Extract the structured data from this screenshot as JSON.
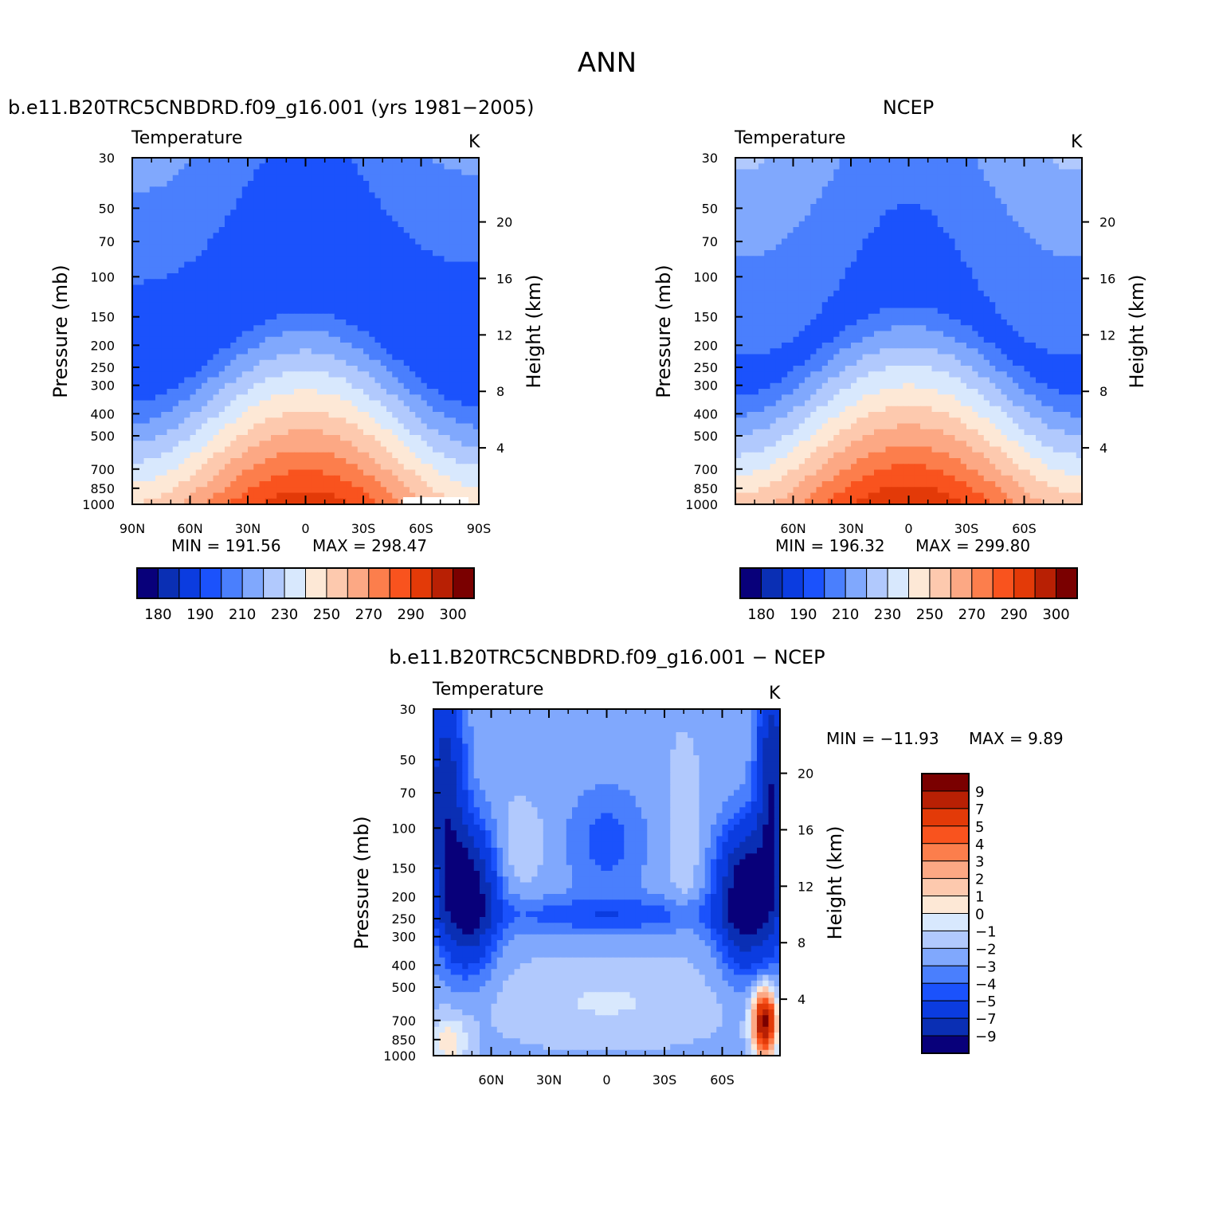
{
  "page_title": "ANN",
  "chart_data": [
    {
      "id": "model",
      "type": "contour",
      "title": "b.e11.B20TRC5CNBDRD.f09_g16.001 (yrs 1981-2005)",
      "variable": "Temperature",
      "units": "K",
      "ylabel": "Pressure (mb)",
      "y2label": "Height (km)",
      "pressure_ticks": [
        30,
        50,
        70,
        100,
        150,
        200,
        250,
        300,
        400,
        500,
        700,
        850,
        1000
      ],
      "height_ticks": [
        20,
        16,
        12,
        8,
        4
      ],
      "lat_ticks": [
        "90N",
        "60N",
        "30N",
        "0",
        "30S",
        "60S",
        "90S"
      ],
      "xlim": [
        90,
        -90
      ],
      "ylim": [
        1000,
        30
      ],
      "min_label": "MIN = 191.56",
      "max_label": "MAX = 298.47",
      "min": 191.56,
      "max": 298.47,
      "stats": {
        "min": 191.56,
        "max": 298.47
      },
      "levels": [
        175,
        180,
        190,
        200,
        210,
        220,
        230,
        240,
        250,
        260,
        270,
        280,
        290,
        300,
        305
      ],
      "colorbar_labels": [
        "180",
        "190",
        "210",
        "230",
        "250",
        "270",
        "290",
        "300"
      ],
      "colorbar_orientation": "horizontal"
    },
    {
      "id": "obs",
      "type": "contour",
      "title": "NCEP",
      "variable": "Temperature",
      "units": "K",
      "ylabel": "Pressure (mb)",
      "y2label": "Height (km)",
      "pressure_ticks": [
        30,
        50,
        70,
        100,
        150,
        200,
        250,
        300,
        400,
        500,
        700,
        850,
        1000
      ],
      "height_ticks": [
        20,
        16,
        12,
        8,
        4
      ],
      "lat_ticks": [
        "60N",
        "30N",
        "0",
        "30S",
        "60S"
      ],
      "xlim": [
        90,
        -90
      ],
      "ylim": [
        1000,
        30
      ],
      "min_label": "MIN = 196.32",
      "max_label": "MAX = 299.80",
      "min": 196.32,
      "max": 299.8,
      "stats": {
        "min": 196.32,
        "max": 299.8
      },
      "levels": [
        175,
        180,
        190,
        200,
        210,
        220,
        230,
        240,
        250,
        260,
        270,
        280,
        290,
        300,
        305
      ],
      "colorbar_labels": [
        "180",
        "190",
        "210",
        "230",
        "250",
        "270",
        "290",
        "300"
      ],
      "colorbar_orientation": "horizontal"
    },
    {
      "id": "diff",
      "type": "contour",
      "title": "b.e11.B20TRC5CNBDRD.f09_g16.001 - NCEP",
      "variable": "Temperature",
      "units": "K",
      "ylabel": "Pressure (mb)",
      "y2label": "Height (km)",
      "pressure_ticks": [
        30,
        50,
        70,
        100,
        150,
        200,
        250,
        300,
        400,
        500,
        700,
        850,
        1000
      ],
      "height_ticks": [
        20,
        16,
        12,
        8,
        4
      ],
      "lat_ticks": [
        "60N",
        "30N",
        "0",
        "30S",
        "60S"
      ],
      "xlim": [
        90,
        -90
      ],
      "ylim": [
        1000,
        30
      ],
      "min_label": "MIN = -11.93",
      "max_label": "MAX = 9.89",
      "min": -11.93,
      "max": 9.89,
      "stats": {
        "min": -11.93,
        "max": 9.89
      },
      "levels": [
        -9,
        -7,
        -5,
        -4,
        -3,
        -2,
        -1,
        0,
        1,
        2,
        3,
        4,
        5,
        7,
        9
      ],
      "colorbar_labels": [
        "9",
        "7",
        "5",
        "4",
        "3",
        "2",
        "1",
        "0",
        "-1",
        "-2",
        "-3",
        "-4",
        "-5",
        "-7",
        "-9"
      ],
      "colorbar_orientation": "vertical"
    }
  ],
  "palette": [
    "#08007a",
    "#0a2fb4",
    "#0b3ce0",
    "#1b52fc",
    "#4a7ffd",
    "#80a8fd",
    "#b1c9fd",
    "#d8e8fd",
    "#fde8d6",
    "#fdc9ae",
    "#fca884",
    "#fc7e4c",
    "#f9531e",
    "#e33a08",
    "#b82004",
    "#7a0000"
  ]
}
